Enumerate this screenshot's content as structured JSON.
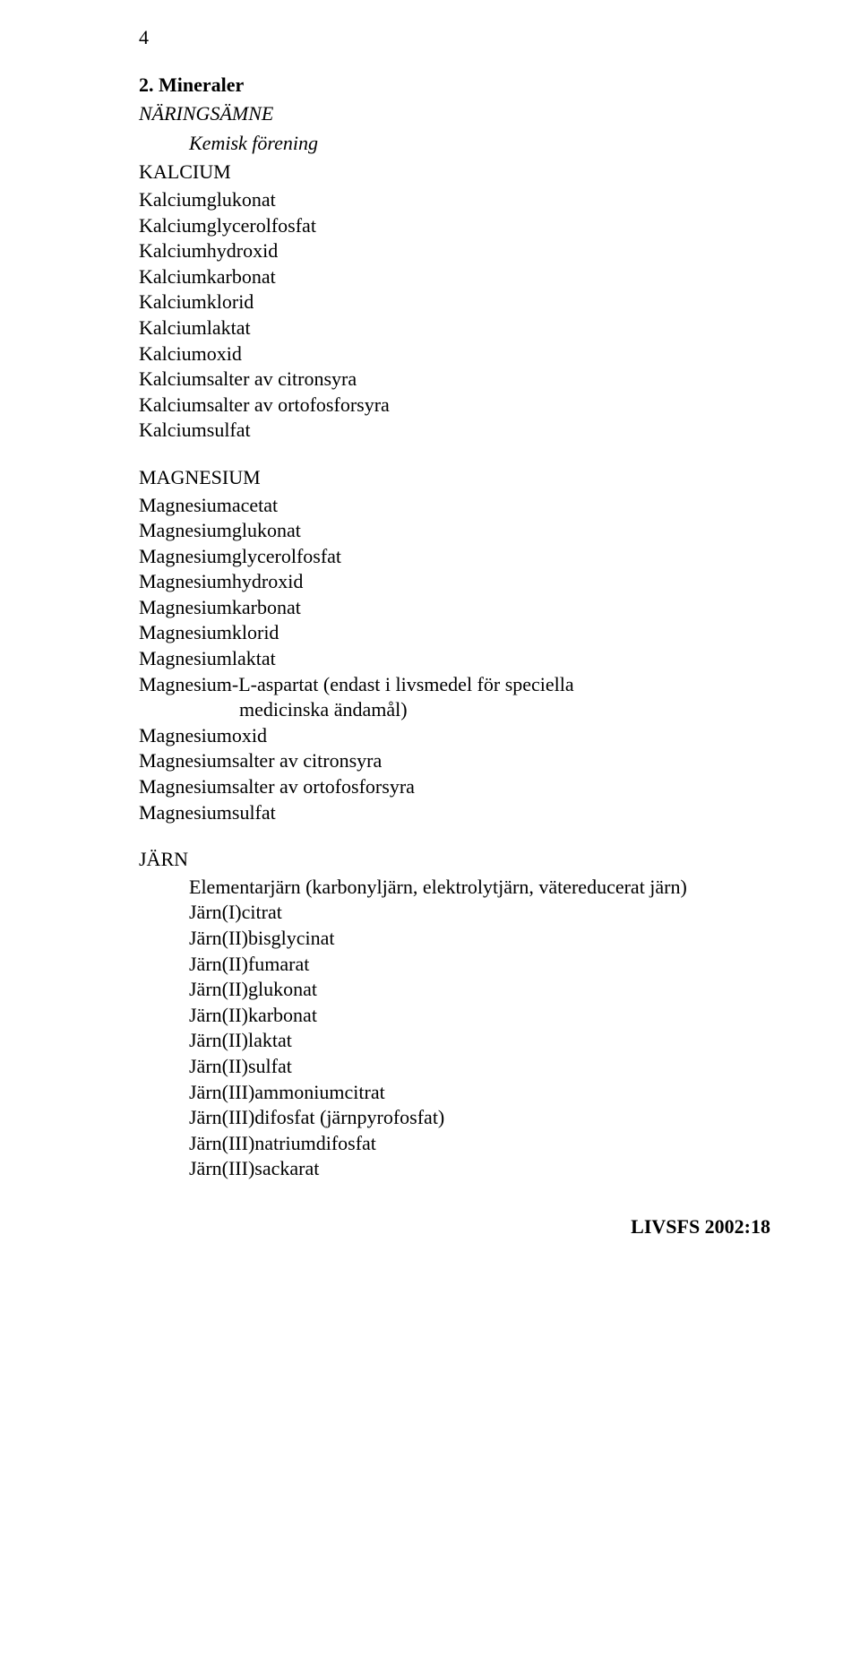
{
  "page_number": "4",
  "section": {
    "number_title": "2.  Mineraler",
    "subtitle_label": "NÄRINGSÄMNE",
    "chem_label": "Kemisk förening"
  },
  "groups": [
    {
      "label": "KALCIUM",
      "indented": false,
      "items": [
        "Kalciumglukonat",
        "Kalciumglycerolfosfat",
        "Kalciumhydroxid",
        "Kalciumkarbonat",
        "Kalciumklorid",
        "Kalciumlaktat",
        "Kalciumoxid",
        "Kalciumsalter av citronsyra",
        "Kalciumsalter av ortofosforsyra",
        "Kalciumsulfat"
      ]
    },
    {
      "label": "MAGNESIUM",
      "indented": false,
      "items": [
        "Magnesiumacetat",
        "Magnesiumglukonat",
        "Magnesiumglycerolfosfat",
        "Magnesiumhydroxid",
        "Magnesiumkarbonat",
        "Magnesiumklorid",
        "Magnesiumlaktat",
        "Magnesium-L-aspartat (endast i livsmedel för speciella",
        {
          "text": "medicinska ändamål)",
          "sub": true
        },
        "Magnesiumoxid",
        "Magnesiumsalter av citronsyra",
        "Magnesiumsalter av ortofosforsyra",
        "Magnesiumsulfat"
      ]
    },
    {
      "label": "JÄRN",
      "indented": true,
      "items": [
        "Elementarjärn (karbonyljärn, elektrolytjärn, vätereducerat järn)",
        "Järn(I)citrat",
        "Järn(II)bisglycinat",
        "Järn(II)fumarat",
        "Järn(II)glukonat",
        "Järn(II)karbonat",
        "Järn(II)laktat",
        "Järn(II)sulfat",
        "Järn(III)ammoniumcitrat",
        "Järn(III)difosfat (järnpyrofosfat)",
        "Järn(III)natriumdifosfat",
        "Järn(III)sackarat"
      ]
    }
  ],
  "footer": "LIVSFS 2002:18"
}
